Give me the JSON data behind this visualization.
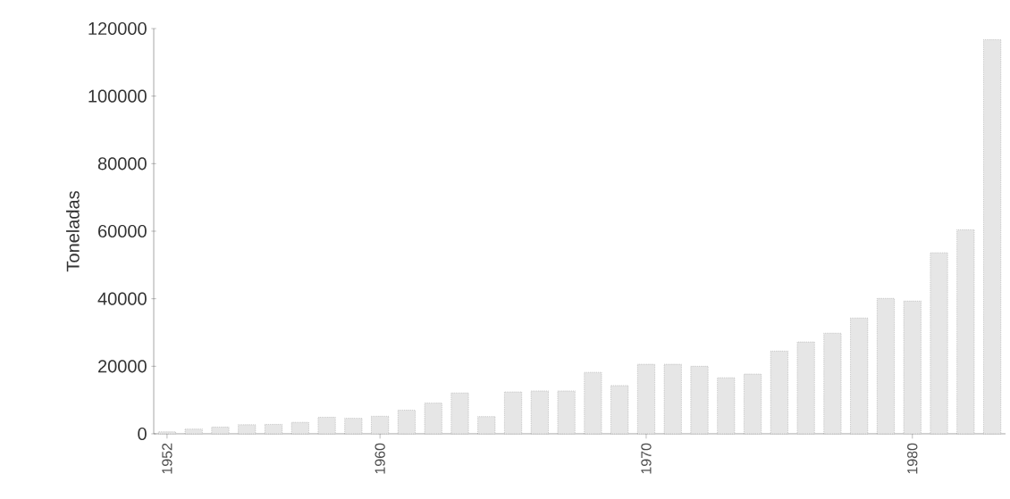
{
  "chart_data": {
    "type": "bar",
    "ylabel": "Toneladas",
    "x": [
      1952,
      1953,
      1954,
      1955,
      1956,
      1957,
      1958,
      1959,
      1960,
      1961,
      1962,
      1963,
      1964,
      1965,
      1966,
      1967,
      1968,
      1969,
      1970,
      1971,
      1972,
      1973,
      1974,
      1975,
      1976,
      1977,
      1978,
      1979,
      1980,
      1981,
      1982,
      1983
    ],
    "values": [
      600,
      1400,
      2000,
      2700,
      2800,
      3400,
      4900,
      4600,
      5200,
      7000,
      9100,
      12100,
      5100,
      12400,
      12700,
      12700,
      18200,
      14300,
      20600,
      20600,
      20000,
      16600,
      17700,
      24500,
      27200,
      29800,
      34300,
      40100,
      39300,
      53600,
      60400,
      116700
    ],
    "color": "#e6e6e6",
    "xlim": [
      1951.5,
      1983.5
    ],
    "ylim": [
      0,
      120000
    ],
    "xticks": [
      1952,
      1960,
      1970,
      1980
    ],
    "yticks": [
      0,
      20000,
      40000,
      60000,
      80000,
      100000,
      120000
    ]
  }
}
